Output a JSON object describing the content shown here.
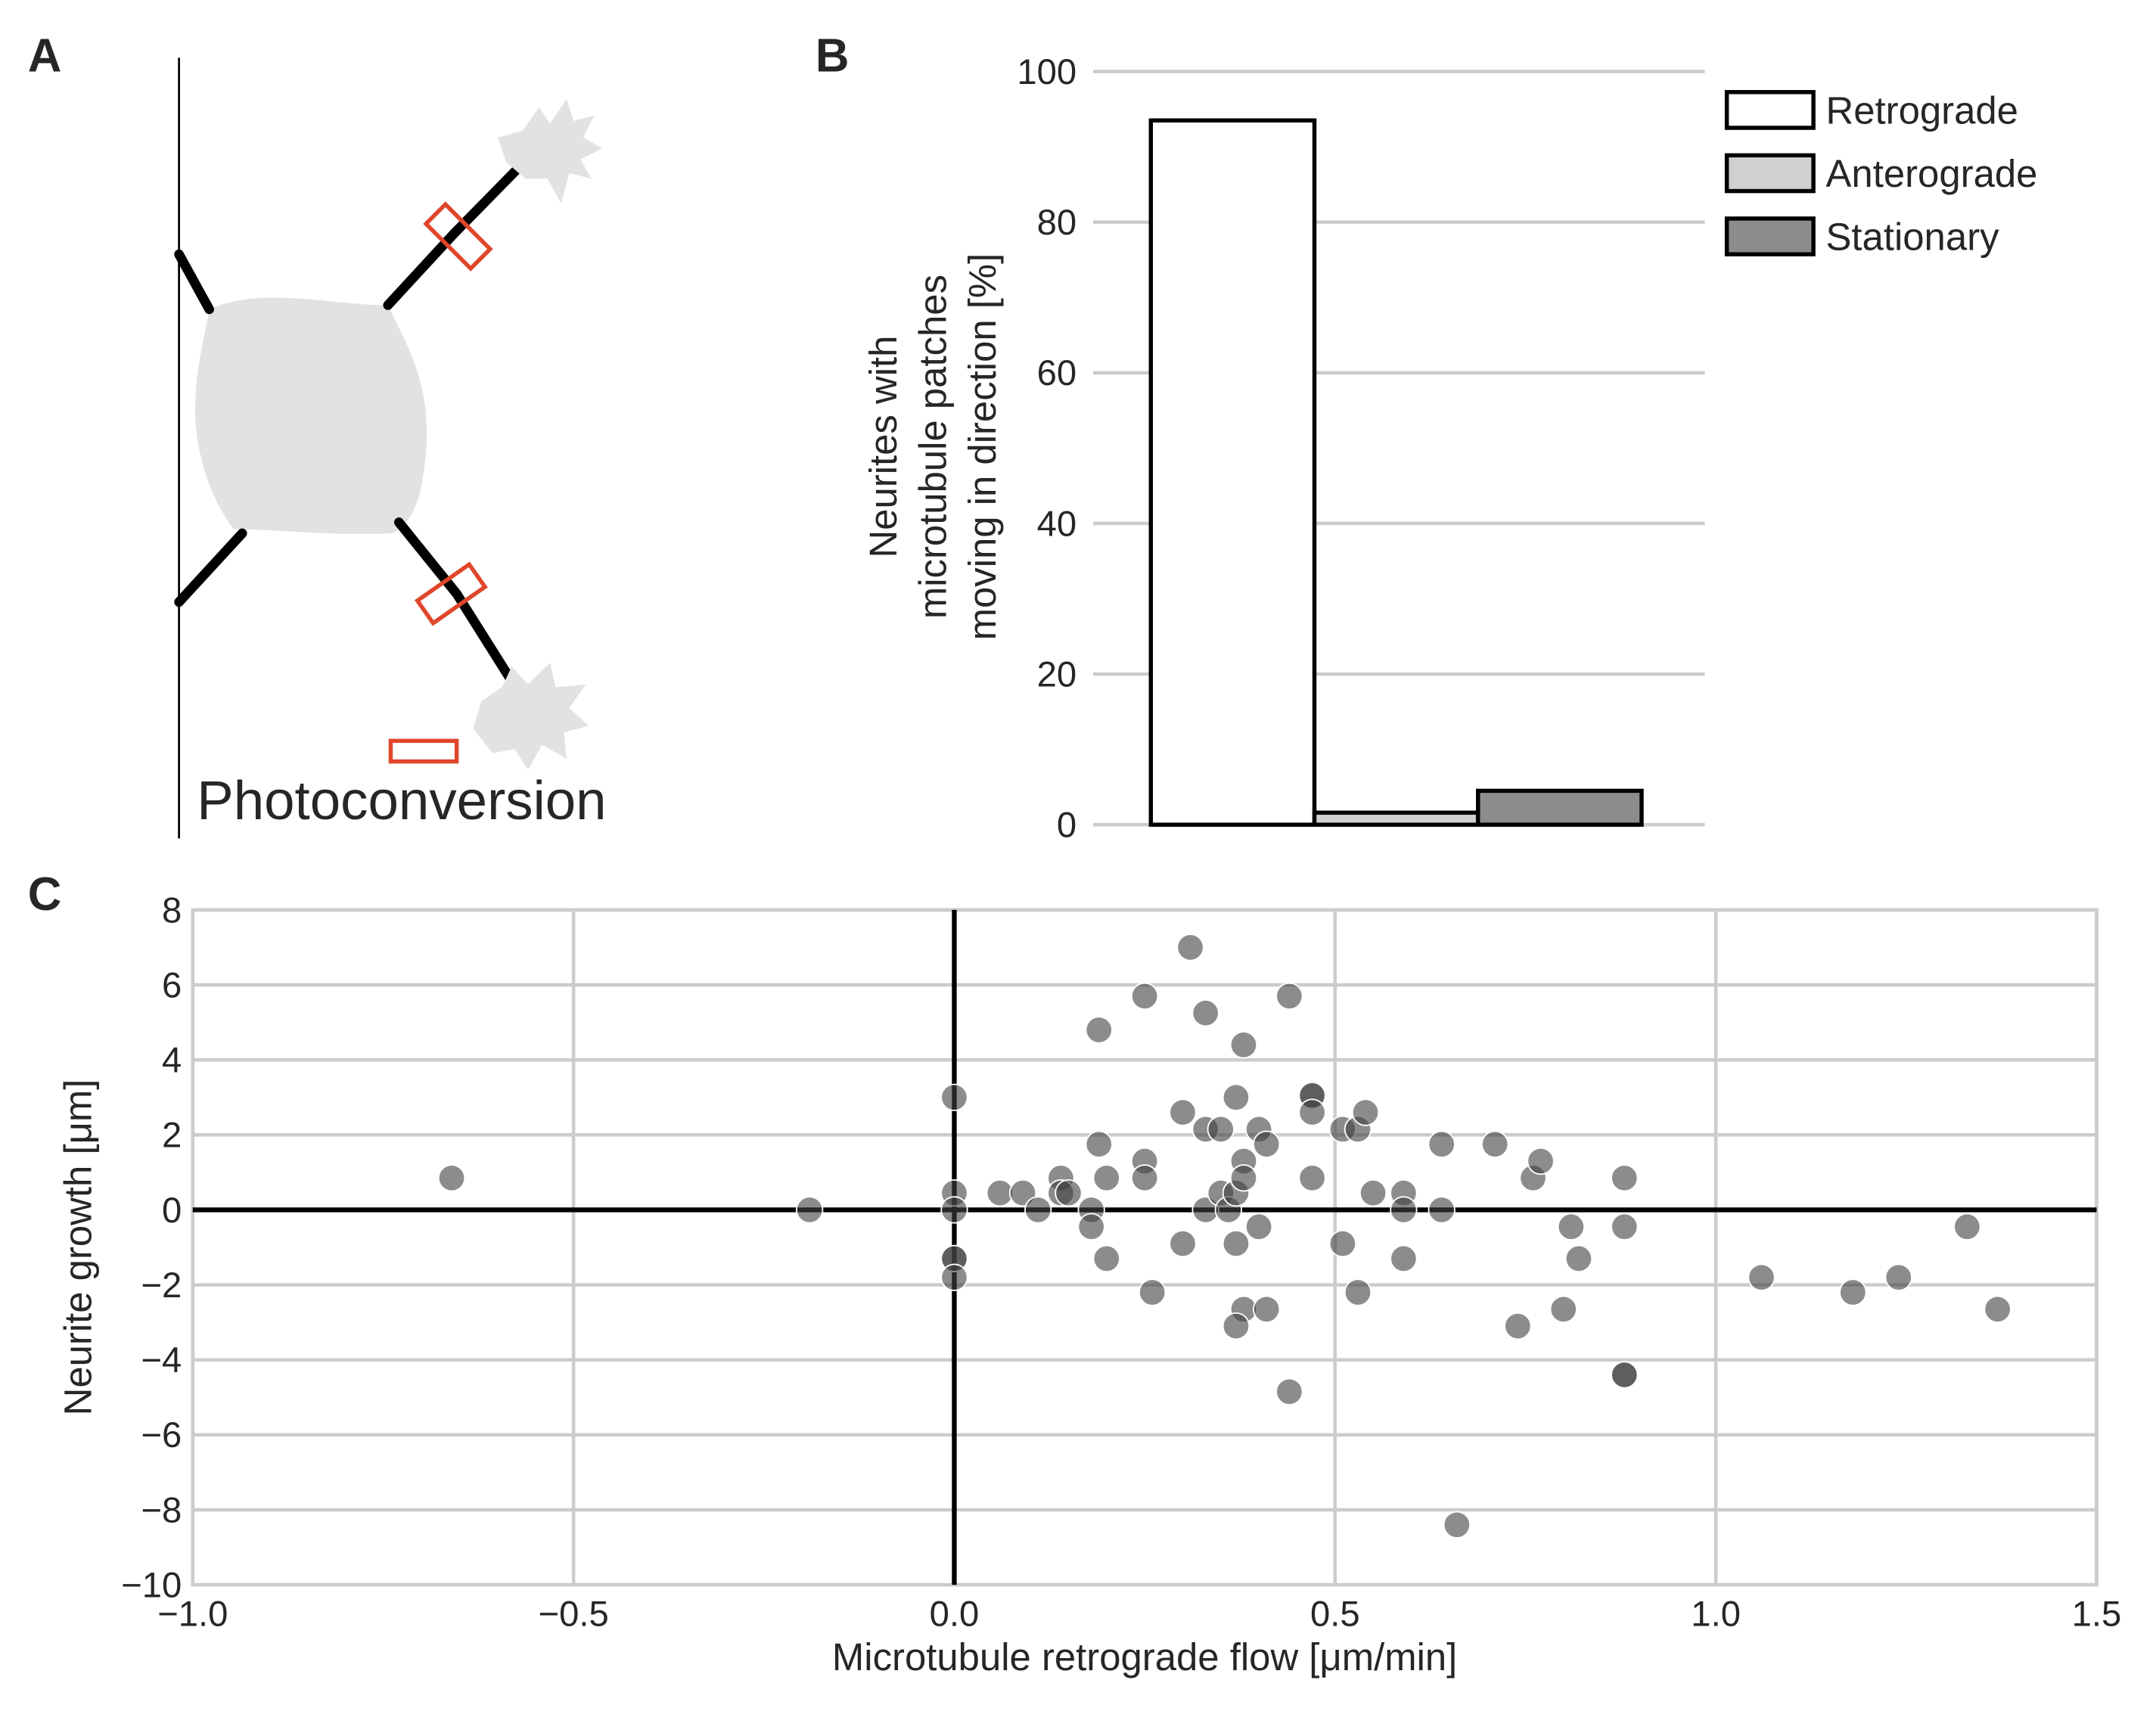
{
  "panels": {
    "A": "A",
    "B": "B",
    "C": "C"
  },
  "diagram": {
    "caption": "Photoconversion"
  },
  "chart_data": [
    {
      "type": "bar",
      "categories": [
        null
      ],
      "series": [
        {
          "name": "Retrograde",
          "color": "#ffffff",
          "values": [
            93.5
          ]
        },
        {
          "name": "Anterograde",
          "color": "#d0d0d0",
          "values": [
            1.6
          ]
        },
        {
          "name": "Stationary",
          "color": "#8c8c8c",
          "values": [
            4.5
          ]
        }
      ],
      "ylabel": [
        "Neurites with",
        "microtubule patches",
        "moving in direction [%]"
      ],
      "ylim": [
        0,
        100
      ],
      "yticks": [
        0,
        20,
        40,
        60,
        80,
        100
      ],
      "grid": true
    },
    {
      "type": "scatter",
      "xlabel": "Microtubule retrograde flow [μm/min]",
      "ylabel": "Neurite growth [μm]",
      "color": "#404040",
      "x": [
        -0.66,
        -0.19,
        0,
        0,
        0,
        0,
        0,
        0,
        0.06,
        0.09,
        0.11,
        0.14,
        0.14,
        0.15,
        0.18,
        0.18,
        0.19,
        0.19,
        0.2,
        0.2,
        0.25,
        0.25,
        0.25,
        0.26,
        0.3,
        0.3,
        0.31,
        0.33,
        0.33,
        0.33,
        0.35,
        0.35,
        0.36,
        0.37,
        0.37,
        0.37,
        0.38,
        0.38,
        0.38,
        0.38,
        0.37,
        0.4,
        0.4,
        0.41,
        0.41,
        0.44,
        0.44,
        0.47,
        0.47,
        0.47,
        0.47,
        0.51,
        0.51,
        0.53,
        0.54,
        0.53,
        0.55,
        0.59,
        0.59,
        0.59,
        0.64,
        0.64,
        0.66,
        0.71,
        0.74,
        0.76,
        0.77,
        0.8,
        0.81,
        0.82,
        0.88,
        0.88,
        0.88,
        0.88,
        1.06,
        1.18,
        1.24,
        1.33,
        1.37
      ],
      "values": [
        0.85,
        0,
        3.0,
        0.45,
        0,
        -1.3,
        -1.3,
        -1.8,
        0.45,
        0.45,
        0,
        0.85,
        0.45,
        0.45,
        0,
        -0.45,
        1.75,
        4.8,
        0.85,
        -1.3,
        1.3,
        5.7,
        0.85,
        -2.2,
        2.6,
        -0.9,
        7.0,
        5.25,
        2.15,
        0,
        2.15,
        0.45,
        0,
        3.0,
        -0.9,
        0.45,
        4.4,
        1.3,
        0.85,
        -2.65,
        -3.1,
        2.15,
        -0.45,
        1.75,
        -2.65,
        5.7,
        -4.85,
        3.05,
        3.05,
        2.6,
        0.85,
        2.15,
        -0.9,
        2.15,
        2.6,
        -2.2,
        0.45,
        0.45,
        0,
        -1.3,
        1.75,
        0,
        -8.4,
        1.75,
        -3.1,
        0.85,
        1.3,
        -2.65,
        -0.45,
        -1.3,
        0.85,
        -0.45,
        -4.4,
        -4.4,
        -1.8,
        -2.2,
        -1.8,
        -0.45,
        -2.65
      ],
      "xlim": [
        -1,
        1.5
      ],
      "xticks": [
        {
          "value": -1,
          "label": "−1.0"
        },
        {
          "value": -0.5,
          "label": "−0.5"
        },
        {
          "value": 0,
          "label": "0.0"
        },
        {
          "value": 0.5,
          "label": "0.5"
        },
        {
          "value": 1,
          "label": "1.0"
        },
        {
          "value": 1.5,
          "label": "1.5"
        }
      ],
      "ylim": [
        -10,
        8
      ],
      "yticks": [
        {
          "value": -10,
          "label": "−10"
        },
        {
          "value": -8,
          "label": "−8"
        },
        {
          "value": -6,
          "label": "−6"
        },
        {
          "value": -4,
          "label": "−4"
        },
        {
          "value": -2,
          "label": "−2"
        },
        0,
        2,
        4,
        6,
        8
      ],
      "grid": true
    }
  ]
}
